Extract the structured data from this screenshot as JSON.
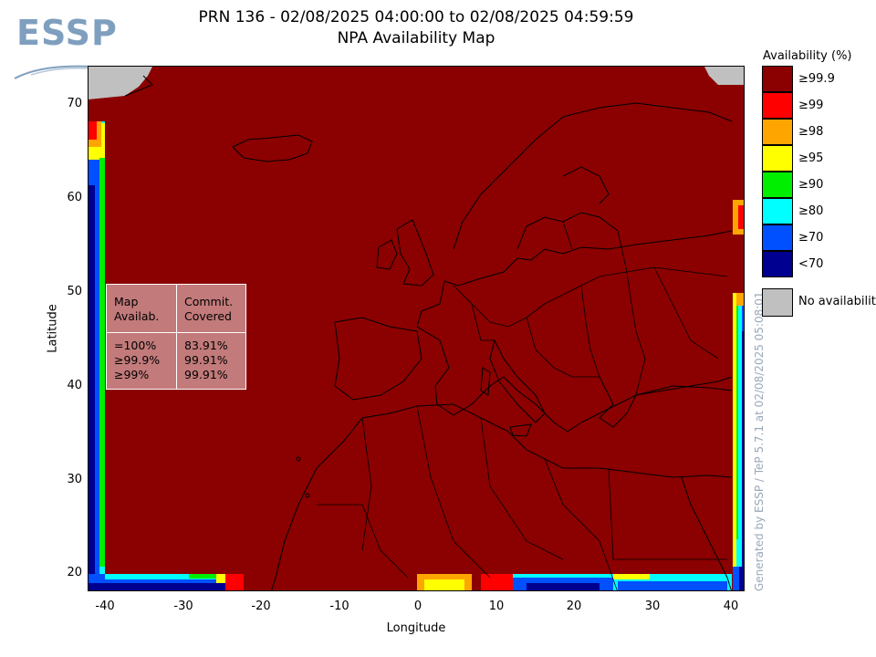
{
  "logo": {
    "text": "ESSP"
  },
  "title": {
    "line1": "PRN 136 - 02/08/2025 04:00:00 to 02/08/2025 04:59:59",
    "line2": "NPA Availability Map"
  },
  "axes": {
    "xlabel": "Longitude",
    "ylabel": "Latitude",
    "xticks": [
      "-40",
      "-30",
      "-20",
      "-10",
      "0",
      "10",
      "20",
      "30",
      "40"
    ],
    "yticks": [
      "70",
      "60",
      "50",
      "40",
      "30",
      "20"
    ],
    "xlim": [
      -42,
      42
    ],
    "ylim": [
      18,
      74
    ]
  },
  "stats_table": {
    "header_left": [
      "Map",
      "Availab."
    ],
    "header_right": [
      "Commit.",
      "Covered"
    ],
    "rows": [
      {
        "label": "=100%",
        "value": "83.91%"
      },
      {
        "label": "≥99.9%",
        "value": "99.91%"
      },
      {
        "label": "≥99%",
        "value": "99.91%"
      }
    ]
  },
  "legend": {
    "title": "Availability (%)",
    "items": [
      {
        "label": "≥99.9",
        "color": "#8b0000"
      },
      {
        "label": "≥99",
        "color": "#ff0000"
      },
      {
        "label": "≥98",
        "color": "#ffa500"
      },
      {
        "label": "≥95",
        "color": "#ffff00"
      },
      {
        "label": "≥90",
        "color": "#00ee00"
      },
      {
        "label": "≥80",
        "color": "#00ffff"
      },
      {
        "label": "≥70",
        "color": "#0050ff"
      },
      {
        "label": "<70",
        "color": "#000090"
      }
    ],
    "no_availability": {
      "label": "No availability",
      "color": "#c0c0c0"
    }
  },
  "watermark": "Generated by ESSP / TeP 5.7.1 at 02/08/2025 05:08:01"
}
